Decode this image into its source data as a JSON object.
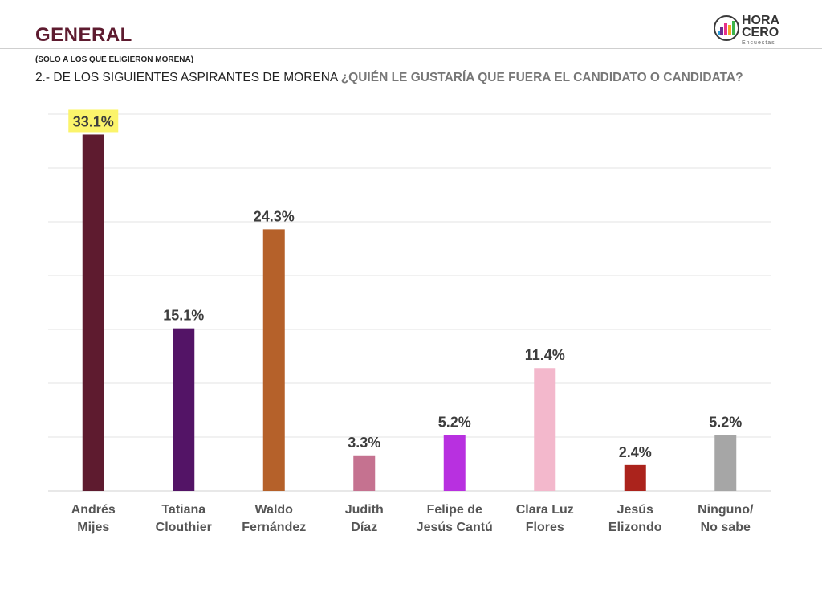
{
  "header": {
    "title": "GENERAL",
    "logo_line1": "HORA",
    "logo_line2": "CERO",
    "logo_sub": "Encuestas",
    "note": "(SOLO A LOS QUE ELIGIERON MORENA)",
    "question_prefix": "2.- DE LOS SIGUIENTES ASPIRANTES DE MORENA",
    "question_main": "¿QUIÉN LE GUSTARÍA QUE FUERA EL CANDIDATO O CANDIDATA?"
  },
  "colors": {
    "title": "#5e1b2f",
    "highlight": "#fbf46b"
  },
  "chart_data": {
    "type": "bar",
    "categories": [
      [
        "Andrés",
        "Mijes"
      ],
      [
        "Tatiana",
        "Clouthier"
      ],
      [
        "Waldo",
        "Fernández"
      ],
      [
        "Judith",
        "Díaz"
      ],
      [
        "Felipe de",
        "Jesús Cantú"
      ],
      [
        "Clara Luz",
        "Flores"
      ],
      [
        "Jesús",
        "Elizondo"
      ],
      [
        "Ninguno/",
        "No sabe"
      ]
    ],
    "values": [
      33.1,
      15.1,
      24.3,
      3.3,
      5.2,
      11.4,
      2.4,
      5.2
    ],
    "value_labels": [
      "33.1%",
      "15.1%",
      "24.3%",
      "3.3%",
      "5.2%",
      "11.4%",
      "2.4%",
      "5.2%"
    ],
    "colors": [
      "#5e1b2f",
      "#531466",
      "#b5612a",
      "#c57290",
      "#b830e0",
      "#f3b8cc",
      "#ab231c",
      "#a6a6a6"
    ],
    "highlighted_index": 0,
    "ylim": [
      0,
      35
    ],
    "gridlines": true
  }
}
